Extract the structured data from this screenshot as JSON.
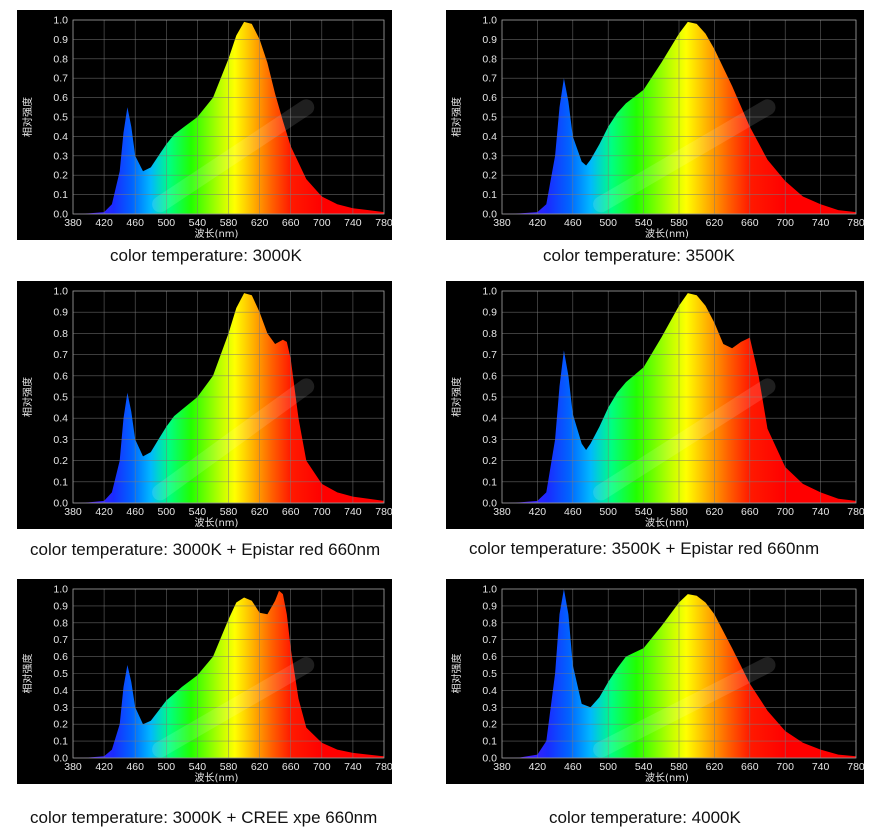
{
  "chart_data": [
    {
      "type": "area",
      "caption": "color temperature: 3000K",
      "ylabel": "相对强度",
      "xlabel": "波长(nm)",
      "xlim": [
        380,
        780
      ],
      "ylim": [
        0,
        1.0
      ],
      "x_ticks": [
        "380",
        "420",
        "460",
        "500",
        "540",
        "580",
        "620",
        "660",
        "700",
        "740",
        "780"
      ],
      "y_ticks": [
        "0.0",
        "0.1",
        "0.2",
        "0.3",
        "0.4",
        "0.5",
        "0.6",
        "0.7",
        "0.8",
        "0.9",
        "1.0"
      ],
      "grid": true,
      "x": [
        380,
        400,
        420,
        430,
        440,
        445,
        450,
        455,
        460,
        470,
        480,
        490,
        500,
        510,
        520,
        540,
        560,
        580,
        590,
        600,
        610,
        620,
        630,
        640,
        650,
        660,
        680,
        700,
        720,
        740,
        760,
        780
      ],
      "y": [
        0,
        0.003,
        0.01,
        0.05,
        0.22,
        0.42,
        0.55,
        0.45,
        0.3,
        0.22,
        0.24,
        0.3,
        0.36,
        0.41,
        0.44,
        0.5,
        0.6,
        0.8,
        0.92,
        0.99,
        0.98,
        0.9,
        0.78,
        0.62,
        0.48,
        0.35,
        0.18,
        0.09,
        0.05,
        0.03,
        0.02,
        0.01
      ]
    },
    {
      "type": "area",
      "caption": "color temperature: 3500K",
      "ylabel": "相对强度",
      "xlabel": "波长(nm)",
      "xlim": [
        380,
        780
      ],
      "ylim": [
        0,
        1.0
      ],
      "x_ticks": [
        "380",
        "420",
        "460",
        "500",
        "540",
        "580",
        "620",
        "660",
        "700",
        "740",
        "780"
      ],
      "y_ticks": [
        "0.0",
        "0.1",
        "0.2",
        "0.3",
        "0.4",
        "0.5",
        "0.6",
        "0.7",
        "0.8",
        "0.9",
        "1.0"
      ],
      "grid": true,
      "x": [
        380,
        400,
        420,
        430,
        440,
        445,
        450,
        455,
        460,
        470,
        475,
        480,
        490,
        500,
        510,
        520,
        540,
        560,
        580,
        590,
        600,
        610,
        620,
        640,
        660,
        680,
        700,
        720,
        740,
        760,
        780
      ],
      "y": [
        0,
        0.003,
        0.01,
        0.05,
        0.3,
        0.55,
        0.7,
        0.58,
        0.4,
        0.27,
        0.25,
        0.28,
        0.36,
        0.45,
        0.52,
        0.57,
        0.64,
        0.78,
        0.93,
        0.99,
        0.98,
        0.93,
        0.85,
        0.66,
        0.45,
        0.28,
        0.17,
        0.09,
        0.05,
        0.02,
        0.01
      ]
    },
    {
      "type": "area",
      "caption": "color temperature: 3000K + Epistar red 660nm",
      "ylabel": "相对强度",
      "xlabel": "波长(nm)",
      "xlim": [
        380,
        780
      ],
      "ylim": [
        0,
        1.0
      ],
      "x_ticks": [
        "380",
        "420",
        "460",
        "500",
        "540",
        "580",
        "620",
        "660",
        "700",
        "740",
        "780"
      ],
      "y_ticks": [
        "0.0",
        "0.1",
        "0.2",
        "0.3",
        "0.4",
        "0.5",
        "0.6",
        "0.7",
        "0.8",
        "0.9",
        "1.0"
      ],
      "grid": true,
      "x": [
        380,
        400,
        420,
        430,
        440,
        445,
        450,
        455,
        460,
        470,
        480,
        490,
        500,
        510,
        520,
        540,
        560,
        580,
        590,
        600,
        610,
        620,
        630,
        640,
        650,
        655,
        660,
        670,
        680,
        700,
        720,
        740,
        760,
        780
      ],
      "y": [
        0,
        0.003,
        0.01,
        0.05,
        0.2,
        0.4,
        0.52,
        0.43,
        0.3,
        0.22,
        0.24,
        0.3,
        0.36,
        0.41,
        0.44,
        0.5,
        0.6,
        0.8,
        0.92,
        0.99,
        0.98,
        0.9,
        0.8,
        0.75,
        0.77,
        0.76,
        0.68,
        0.4,
        0.2,
        0.09,
        0.05,
        0.03,
        0.02,
        0.01
      ]
    },
    {
      "type": "area",
      "caption": "color temperature: 3500K + Epistar red 660nm",
      "ylabel": "相对强度",
      "xlabel": "波长(nm)",
      "xlim": [
        380,
        780
      ],
      "ylim": [
        0,
        1.0
      ],
      "x_ticks": [
        "380",
        "420",
        "460",
        "500",
        "540",
        "580",
        "620",
        "660",
        "700",
        "740",
        "780"
      ],
      "y_ticks": [
        "0.0",
        "0.1",
        "0.2",
        "0.3",
        "0.4",
        "0.5",
        "0.6",
        "0.7",
        "0.8",
        "0.9",
        "1.0"
      ],
      "grid": true,
      "x": [
        380,
        400,
        420,
        430,
        440,
        445,
        450,
        455,
        460,
        470,
        475,
        480,
        490,
        500,
        510,
        520,
        540,
        560,
        580,
        590,
        600,
        610,
        620,
        630,
        640,
        650,
        660,
        670,
        680,
        700,
        720,
        740,
        760,
        780
      ],
      "y": [
        0,
        0.003,
        0.01,
        0.05,
        0.3,
        0.55,
        0.72,
        0.6,
        0.42,
        0.28,
        0.25,
        0.28,
        0.36,
        0.45,
        0.52,
        0.57,
        0.64,
        0.78,
        0.93,
        0.99,
        0.98,
        0.93,
        0.85,
        0.75,
        0.73,
        0.76,
        0.78,
        0.6,
        0.35,
        0.17,
        0.09,
        0.05,
        0.02,
        0.01
      ]
    },
    {
      "type": "area",
      "caption": "color temperature: 3000K + CREE xpe 660nm",
      "ylabel": "相对强度",
      "xlabel": "波长(nm)",
      "xlim": [
        380,
        780
      ],
      "ylim": [
        0,
        1.0
      ],
      "x_ticks": [
        "380",
        "420",
        "460",
        "500",
        "540",
        "580",
        "620",
        "660",
        "700",
        "740",
        "780"
      ],
      "y_ticks": [
        "0.0",
        "0.1",
        "0.2",
        "0.3",
        "0.4",
        "0.5",
        "0.6",
        "0.7",
        "0.8",
        "0.9",
        "1.0"
      ],
      "grid": true,
      "x": [
        380,
        400,
        420,
        430,
        440,
        445,
        450,
        455,
        460,
        470,
        480,
        490,
        500,
        510,
        520,
        540,
        560,
        580,
        590,
        600,
        610,
        620,
        630,
        640,
        645,
        650,
        655,
        660,
        670,
        680,
        700,
        720,
        740,
        760,
        780
      ],
      "y": [
        0,
        0.003,
        0.01,
        0.05,
        0.2,
        0.42,
        0.55,
        0.45,
        0.3,
        0.2,
        0.22,
        0.28,
        0.34,
        0.38,
        0.42,
        0.49,
        0.6,
        0.82,
        0.92,
        0.95,
        0.93,
        0.86,
        0.85,
        0.93,
        0.99,
        0.97,
        0.85,
        0.65,
        0.35,
        0.18,
        0.09,
        0.05,
        0.03,
        0.02,
        0.01
      ]
    },
    {
      "type": "area",
      "caption": "color temperature: 4000K",
      "ylabel": "相对强度",
      "xlabel": "波长(nm)",
      "xlim": [
        380,
        780
      ],
      "ylim": [
        0,
        1.0
      ],
      "x_ticks": [
        "380",
        "420",
        "460",
        "500",
        "540",
        "580",
        "620",
        "660",
        "700",
        "740",
        "780"
      ],
      "y_ticks": [
        "0.0",
        "0.1",
        "0.2",
        "0.3",
        "0.4",
        "0.5",
        "0.6",
        "0.7",
        "0.8",
        "0.9",
        "1.0"
      ],
      "grid": true,
      "x": [
        380,
        400,
        420,
        430,
        440,
        445,
        450,
        455,
        460,
        470,
        480,
        490,
        500,
        510,
        520,
        540,
        560,
        580,
        590,
        600,
        610,
        620,
        640,
        660,
        680,
        700,
        720,
        740,
        760,
        780
      ],
      "y": [
        0,
        0.003,
        0.02,
        0.1,
        0.5,
        0.85,
        1.0,
        0.85,
        0.55,
        0.32,
        0.3,
        0.36,
        0.45,
        0.53,
        0.6,
        0.65,
        0.78,
        0.92,
        0.97,
        0.96,
        0.92,
        0.85,
        0.65,
        0.44,
        0.28,
        0.16,
        0.09,
        0.05,
        0.02,
        0.01
      ]
    }
  ]
}
